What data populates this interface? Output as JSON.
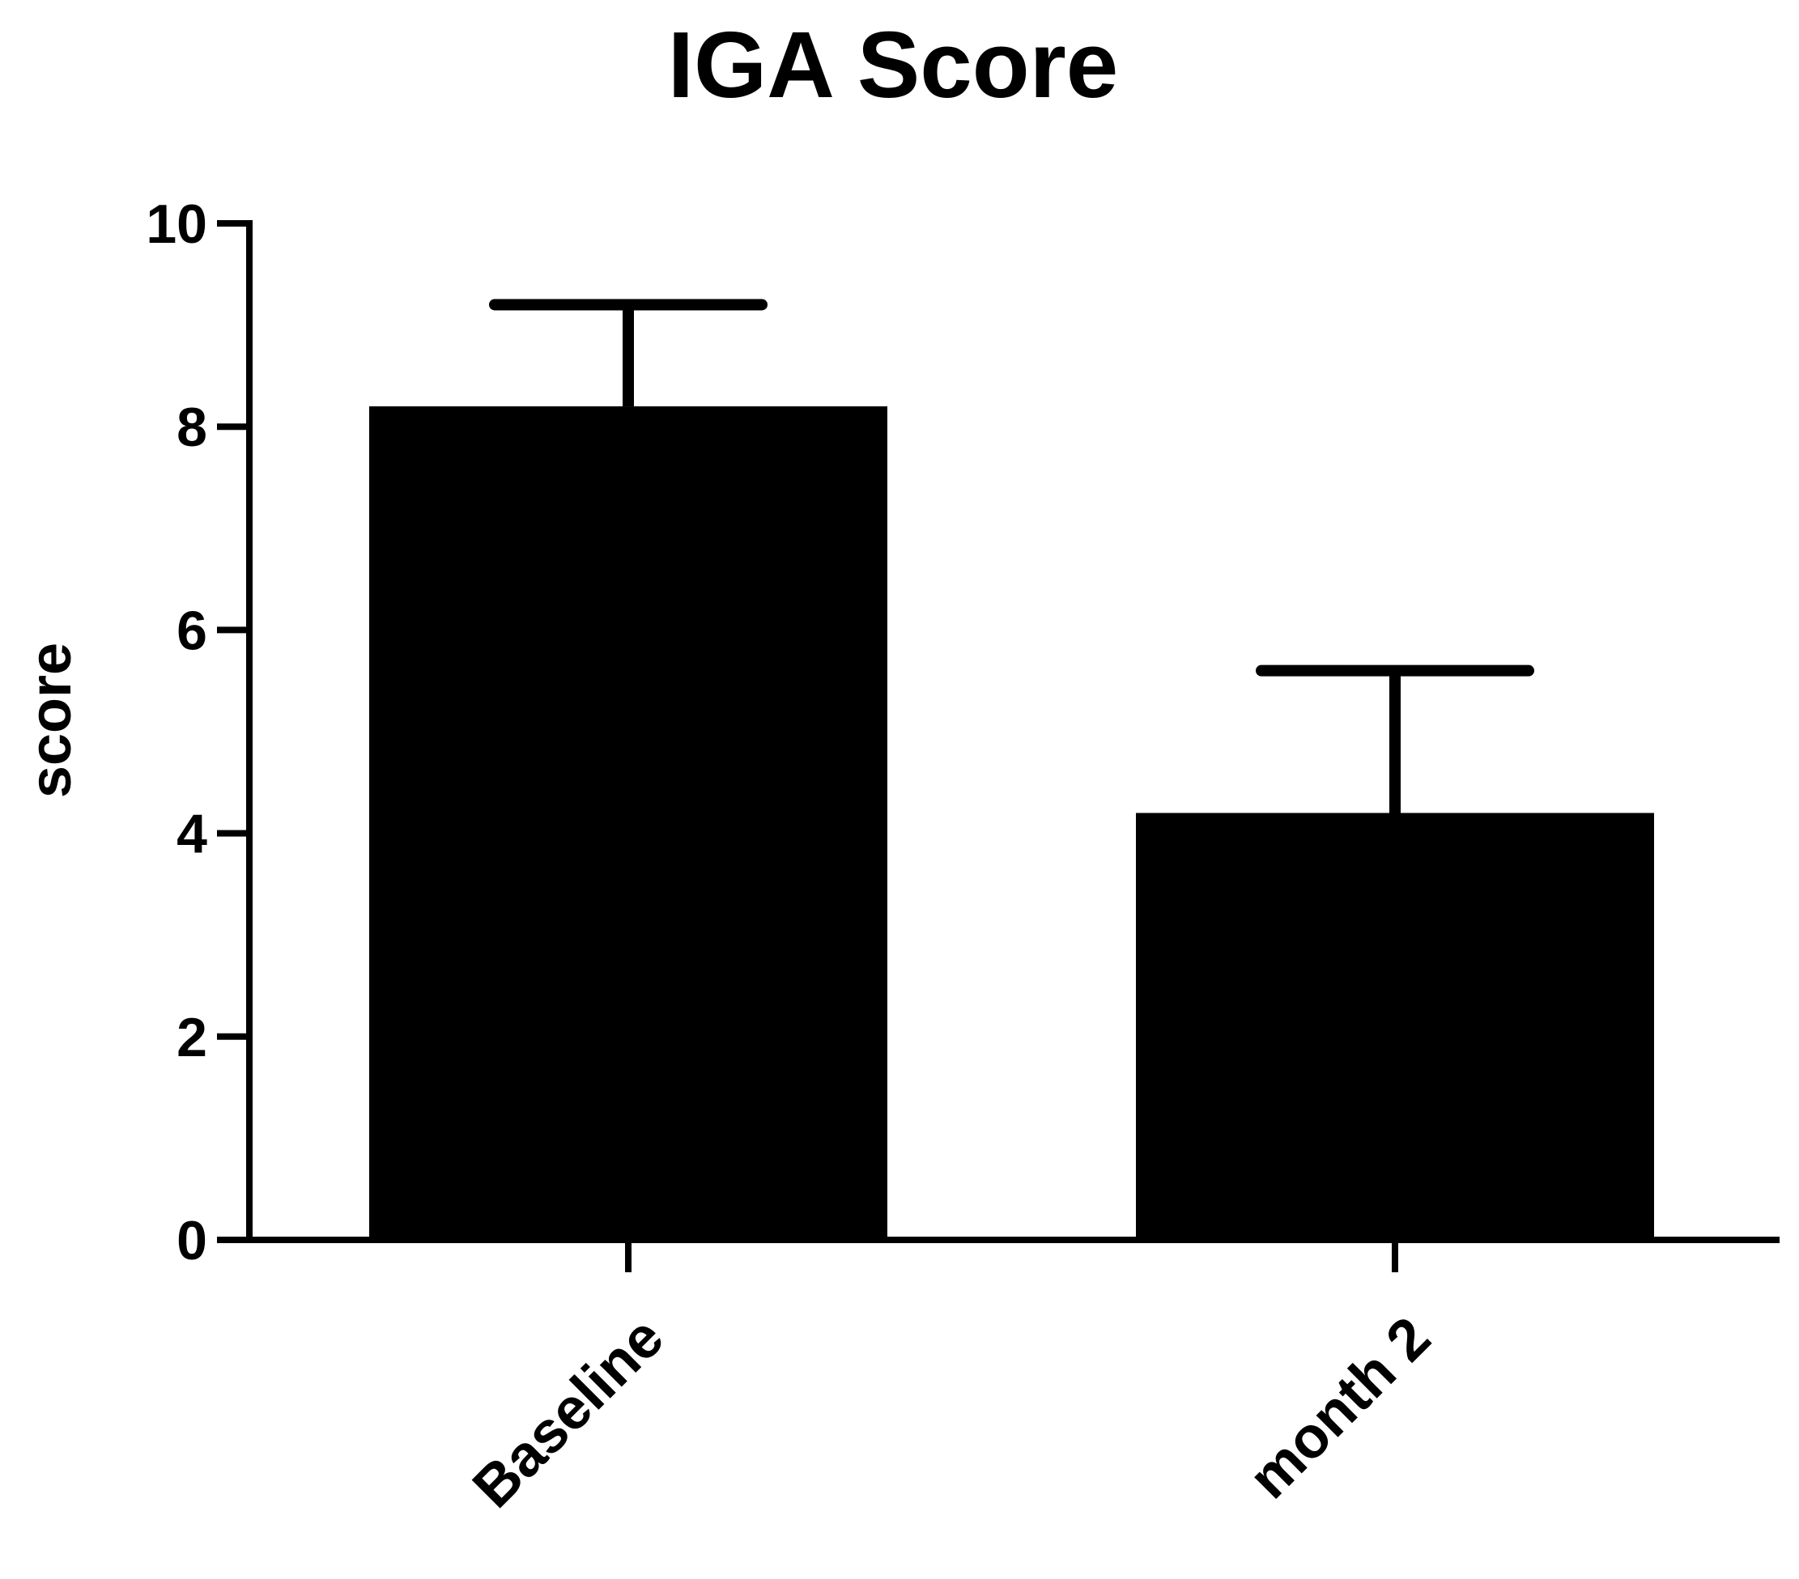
{
  "chart_data": {
    "type": "bar",
    "title": "IGA Score",
    "xlabel": "",
    "ylabel": "score",
    "categories": [
      "Baseline",
      "month 2"
    ],
    "values": [
      8.2,
      4.2
    ],
    "error_upper": [
      9.2,
      5.6
    ],
    "ylim": [
      0,
      10
    ],
    "yticks": [
      0,
      2,
      4,
      6,
      8,
      10
    ],
    "ytick_labels": [
      "0",
      "2",
      "4",
      "6",
      "8",
      "10"
    ],
    "grid": false,
    "legend": "none",
    "bar_color": "#000000",
    "axis_color": "#000000"
  }
}
